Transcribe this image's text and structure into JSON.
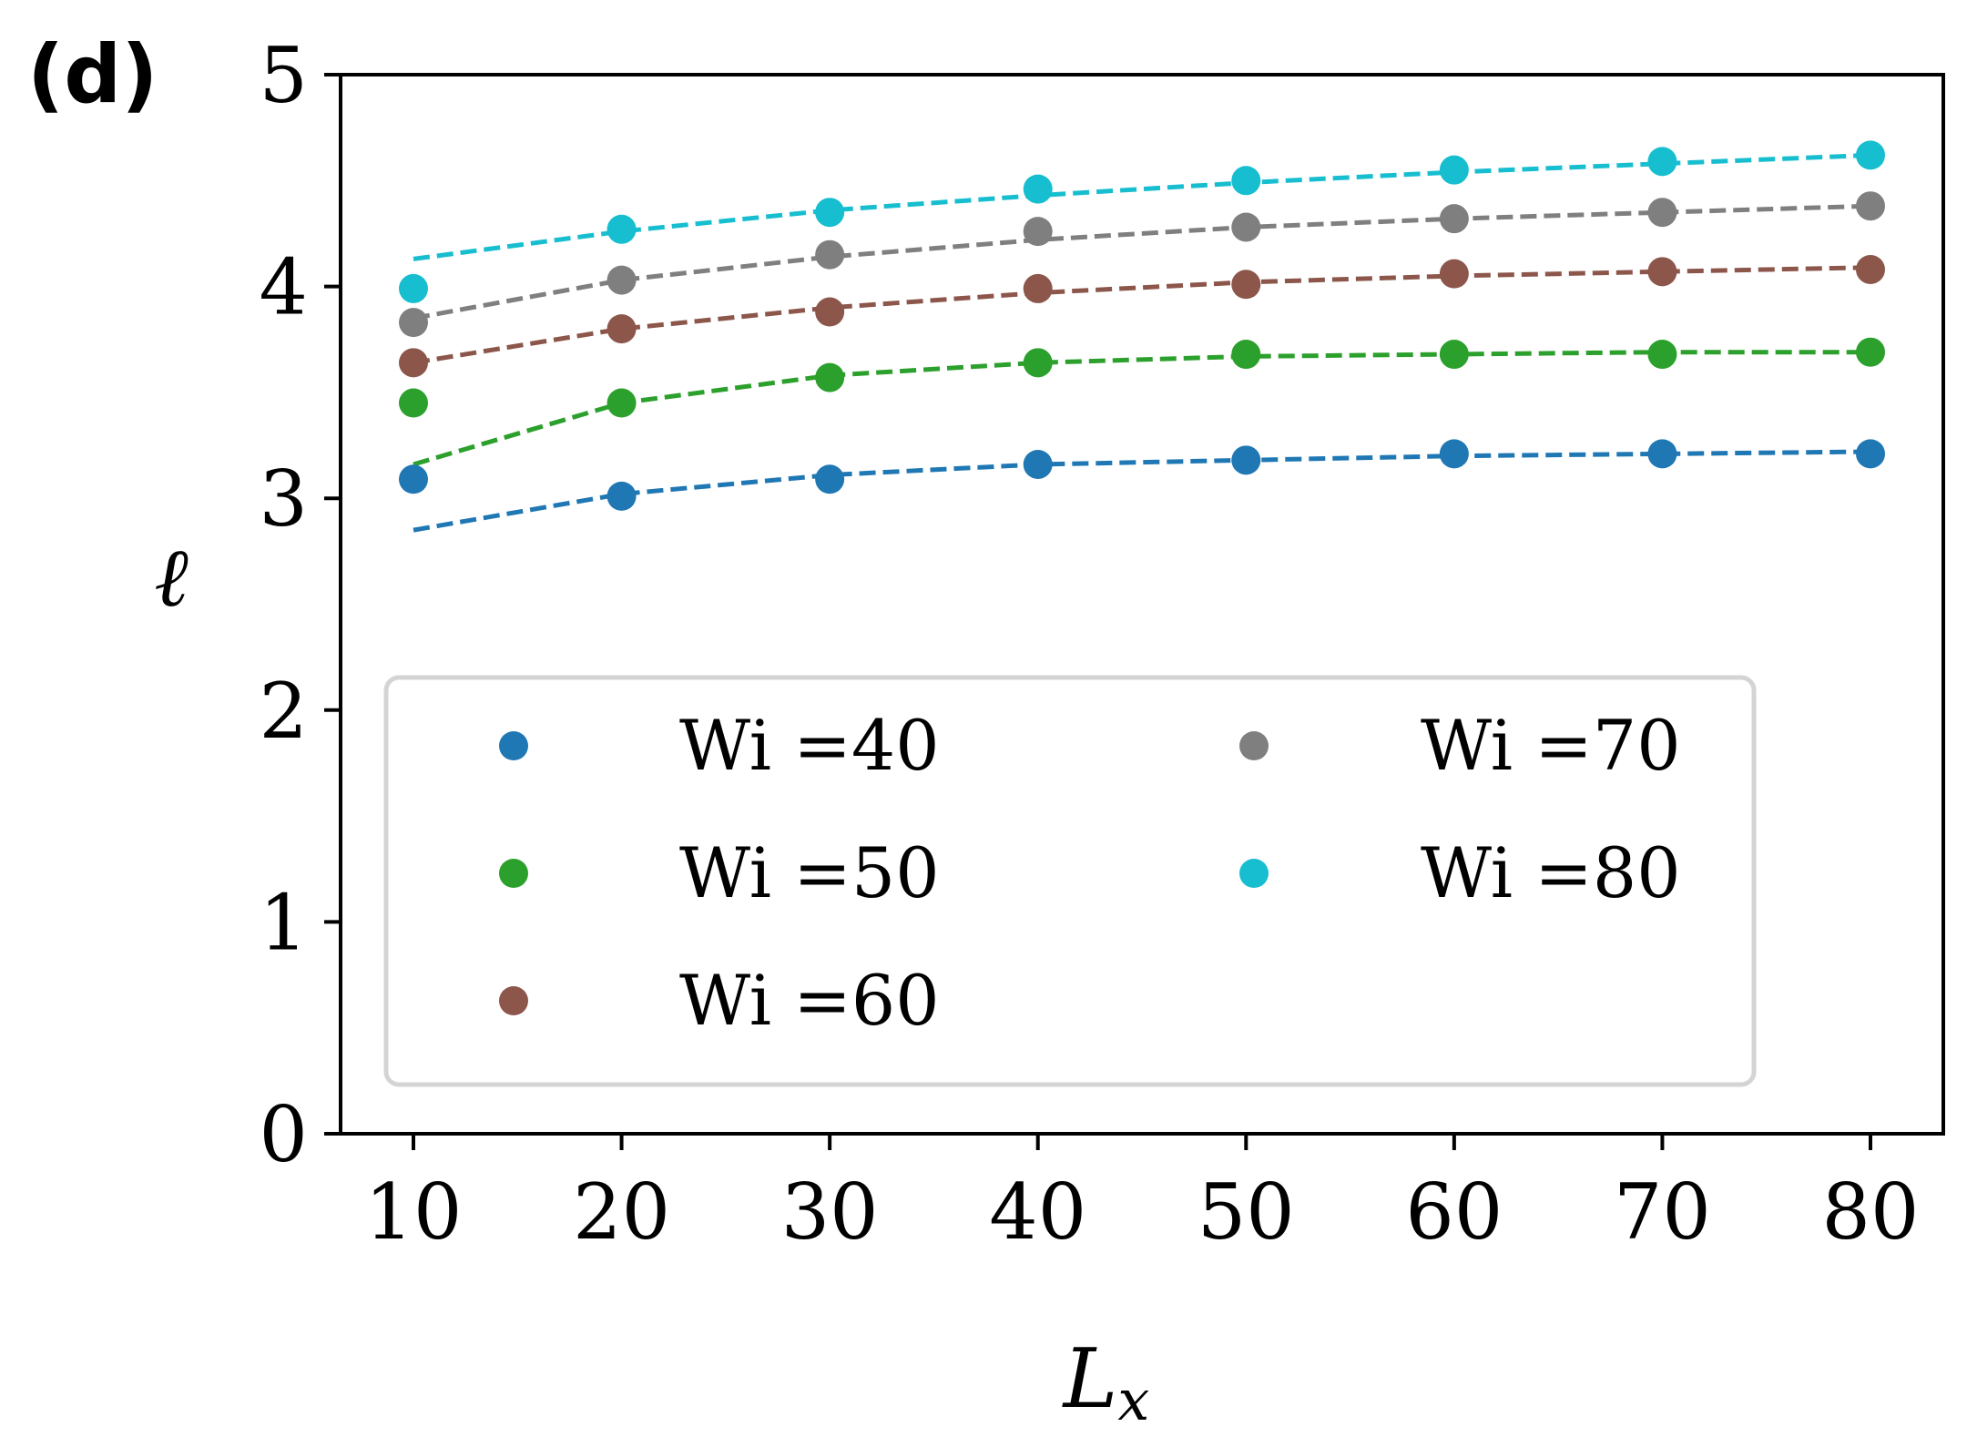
{
  "panel_label": "(d)",
  "chart_data": {
    "type": "scatter",
    "title": "",
    "xlabel": "L",
    "xlabel_sub": "x",
    "ylabel": "ℓ",
    "xlim": [
      6.5,
      83.5
    ],
    "ylim": [
      0,
      5
    ],
    "xticks": [
      10,
      20,
      30,
      40,
      50,
      60,
      70,
      80
    ],
    "yticks": [
      0,
      1,
      2,
      3,
      4,
      5
    ],
    "grid": false,
    "legend_position": "lower-center",
    "legend_columns": 2,
    "series": [
      {
        "name": "Wi =40",
        "color": "#1f77b4",
        "x": [
          10,
          20,
          30,
          40,
          50,
          60,
          70,
          80
        ],
        "points": [
          3.09,
          3.01,
          3.09,
          3.16,
          3.18,
          3.21,
          3.21,
          3.21
        ],
        "fit": [
          2.85,
          3.02,
          3.11,
          3.16,
          3.18,
          3.2,
          3.21,
          3.22
        ]
      },
      {
        "name": "Wi =50",
        "color": "#2ca02c",
        "x": [
          10,
          20,
          30,
          40,
          50,
          60,
          70,
          80
        ],
        "points": [
          3.45,
          3.45,
          3.57,
          3.64,
          3.68,
          3.68,
          3.68,
          3.69
        ],
        "fit": [
          3.16,
          3.45,
          3.58,
          3.64,
          3.67,
          3.68,
          3.69,
          3.69
        ]
      },
      {
        "name": "Wi =60",
        "color": "#8c564b",
        "x": [
          10,
          20,
          30,
          40,
          50,
          60,
          70,
          80
        ],
        "points": [
          3.64,
          3.8,
          3.88,
          3.99,
          4.01,
          4.06,
          4.07,
          4.08
        ],
        "fit": [
          3.64,
          3.8,
          3.9,
          3.97,
          4.02,
          4.05,
          4.07,
          4.09
        ]
      },
      {
        "name": "Wi =70",
        "color": "#7f7f7f",
        "x": [
          10,
          20,
          30,
          40,
          50,
          60,
          70,
          80
        ],
        "points": [
          3.83,
          4.03,
          4.15,
          4.26,
          4.28,
          4.32,
          4.35,
          4.38
        ],
        "fit": [
          3.85,
          4.03,
          4.14,
          4.22,
          4.28,
          4.32,
          4.35,
          4.38
        ]
      },
      {
        "name": "Wi =80",
        "color": "#17becf",
        "x": [
          10,
          20,
          30,
          40,
          50,
          60,
          70,
          80
        ],
        "points": [
          3.99,
          4.27,
          4.35,
          4.46,
          4.5,
          4.55,
          4.59,
          4.62
        ],
        "fit": [
          4.13,
          4.26,
          4.36,
          4.43,
          4.49,
          4.54,
          4.58,
          4.62
        ]
      }
    ]
  }
}
